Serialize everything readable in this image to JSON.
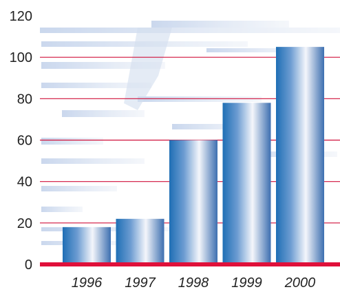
{
  "chart_data": {
    "type": "bar",
    "categories": [
      "1996",
      "1997",
      "1998",
      "1999",
      "2000"
    ],
    "values": [
      18,
      22,
      60,
      78,
      105
    ],
    "yticks": [
      "0",
      "20",
      "40",
      "60",
      "80",
      "100",
      "120"
    ],
    "ylim": [
      0,
      120
    ],
    "title": "",
    "xlabel": "",
    "ylabel": "",
    "grid": true,
    "colors": {
      "gridline": "#d0103a",
      "baseline": "#e0103a",
      "bar_dark": "#1f6fb5",
      "bar_light": "#f4f6fb",
      "background_watermark": "#c5d3ea"
    }
  }
}
